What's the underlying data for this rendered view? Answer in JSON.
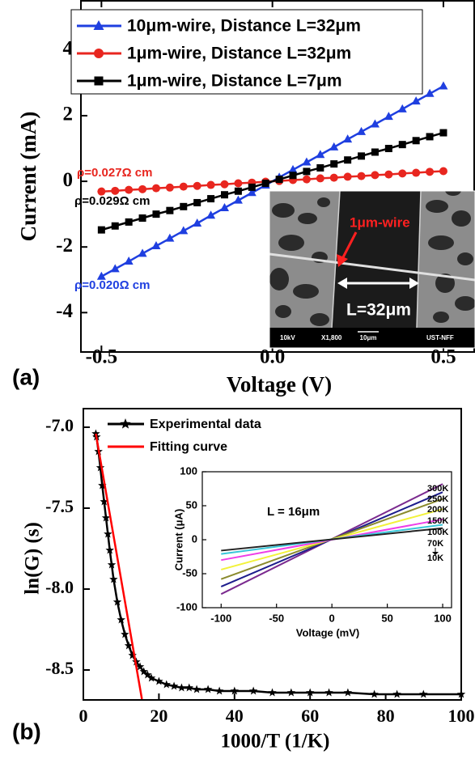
{
  "chart_data": [
    {
      "type": "line",
      "panel_label": "(a)",
      "xlabel": "Voltage (V)",
      "ylabel": "Current (mA)",
      "xlim": [
        -0.56,
        0.59
      ],
      "ylim": [
        -5.2,
        5.5
      ],
      "xticks": [
        -0.5,
        {
          "value": 0,
          "label": "0.0"
        },
        0.5
      ],
      "yticks": [
        -4,
        -2,
        0,
        2,
        4
      ],
      "x": [
        -0.5,
        -0.46,
        -0.42,
        -0.38,
        -0.34,
        -0.3,
        -0.26,
        -0.22,
        -0.18,
        -0.14,
        -0.1,
        -0.06,
        -0.02,
        0.02,
        0.06,
        0.1,
        0.14,
        0.18,
        0.22,
        0.26,
        0.3,
        0.34,
        0.38,
        0.42,
        0.46,
        0.5
      ],
      "legend": "upper left",
      "series": [
        {
          "name": "10μm-wire, Distance L=32μm",
          "color": "#1f3fe0",
          "marker": "triangle",
          "values": [
            -2.9,
            -2.67,
            -2.44,
            -2.2,
            -1.97,
            -1.74,
            -1.51,
            -1.28,
            -1.04,
            -0.81,
            -0.58,
            -0.35,
            -0.12,
            0.12,
            0.35,
            0.58,
            0.81,
            1.04,
            1.28,
            1.51,
            1.74,
            1.97,
            2.2,
            2.44,
            2.67,
            2.9
          ]
        },
        {
          "name": "1μm-wire, Distance L=32μm",
          "color": "#e8261f",
          "marker": "circle",
          "values": [
            -0.31,
            -0.29,
            -0.26,
            -0.24,
            -0.21,
            -0.19,
            -0.16,
            -0.14,
            -0.11,
            -0.09,
            -0.06,
            -0.04,
            -0.01,
            0.01,
            0.04,
            0.06,
            0.09,
            0.11,
            0.14,
            0.16,
            0.19,
            0.21,
            0.24,
            0.26,
            0.29,
            0.31
          ]
        },
        {
          "name": "1μm-wire, Distance L=7μm",
          "color": "#000000",
          "marker": "square",
          "values": [
            -1.48,
            -1.36,
            -1.24,
            -1.12,
            -1.0,
            -0.89,
            -0.77,
            -0.65,
            -0.53,
            -0.41,
            -0.3,
            -0.18,
            -0.06,
            0.06,
            0.18,
            0.3,
            0.41,
            0.53,
            0.65,
            0.77,
            0.89,
            1.0,
            1.12,
            1.24,
            1.36,
            1.48
          ]
        }
      ],
      "annotations": [
        {
          "text": "ρ=0.027Ω cm",
          "color": "#e8261f"
        },
        {
          "text": "ρ=0.029Ω cm",
          "color": "#000000"
        },
        {
          "text": "ρ=0.020Ω cm",
          "color": "#1f3fe0"
        }
      ],
      "inset_image": {
        "wire_label": "1μm-wire",
        "length_label": "L=32μm",
        "footer": [
          "10kV",
          "X1,800",
          "10μm",
          "UST-NFF"
        ]
      }
    },
    {
      "type": "line",
      "panel_label": "(b)",
      "xlabel": "1000/T (1/K)",
      "ylabel": "ln(G) (s)",
      "xlim": [
        0,
        100
      ],
      "ylim": [
        -8.685,
        -6.885
      ],
      "xticks": [
        0,
        20,
        40,
        60,
        80,
        100
      ],
      "yticks": [
        {
          "value": -7,
          "label": "-7.0"
        },
        -7.5,
        {
          "value": -8,
          "label": "-8.0"
        },
        -8.5
      ],
      "legend": "upper left",
      "series": [
        {
          "name": "Experimental data",
          "color": "#000000",
          "marker": "star",
          "x": [
            3.3,
            3.5,
            4,
            4.5,
            5,
            5.5,
            6,
            6.5,
            7,
            7.5,
            8,
            9,
            10,
            11,
            12,
            13,
            14,
            15,
            16,
            17,
            18,
            20,
            22,
            24,
            26,
            28,
            30,
            33,
            36,
            40,
            45,
            50,
            55,
            60,
            65,
            70,
            77,
            83,
            90,
            100
          ],
          "values": [
            -7.04,
            -7.06,
            -7.15,
            -7.25,
            -7.36,
            -7.46,
            -7.56,
            -7.66,
            -7.76,
            -7.85,
            -7.94,
            -8.08,
            -8.19,
            -8.28,
            -8.35,
            -8.41,
            -8.45,
            -8.48,
            -8.51,
            -8.53,
            -8.55,
            -8.57,
            -8.59,
            -8.6,
            -8.61,
            -8.61,
            -8.62,
            -8.62,
            -8.63,
            -8.63,
            -8.63,
            -8.64,
            -8.64,
            -8.64,
            -8.64,
            -8.64,
            -8.65,
            -8.65,
            -8.65,
            -8.65
          ]
        },
        {
          "name": "Fitting curve",
          "color": "#ff0000",
          "marker": "none",
          "x": [
            3.3,
            15.5
          ],
          "values": [
            -7.04,
            -8.68
          ]
        }
      ]
    },
    {
      "type": "line",
      "xlabel": "Voltage (mV)",
      "ylabel": "Current (μA)",
      "annotation": "L = 16μm",
      "xlim": [
        -117,
        108
      ],
      "ylim": [
        -100,
        100
      ],
      "xticks": [
        -100,
        -50,
        0,
        50,
        100
      ],
      "yticks": [
        -100,
        -50,
        0,
        50,
        100
      ],
      "x": [
        -100,
        100
      ],
      "series": [
        {
          "name": "300K",
          "color": "#7b2a8f",
          "values": [
            -80,
            82
          ]
        },
        {
          "name": "250K",
          "color": "#1c1c8c",
          "values": [
            -69,
            70
          ]
        },
        {
          "name": "200K",
          "color": "#8a8a2e",
          "values": [
            -58,
            60
          ]
        },
        {
          "name": "150K",
          "color": "#f2f23a",
          "values": [
            -44,
            45
          ]
        },
        {
          "name": "100K",
          "color": "#ee3ee8",
          "values": [
            -30,
            30
          ]
        },
        {
          "name": "70K",
          "color": "#39c6d9",
          "values": [
            -21,
            22
          ]
        },
        {
          "name": "10K",
          "color": "#222222",
          "values": [
            -16,
            17
          ]
        }
      ]
    }
  ]
}
